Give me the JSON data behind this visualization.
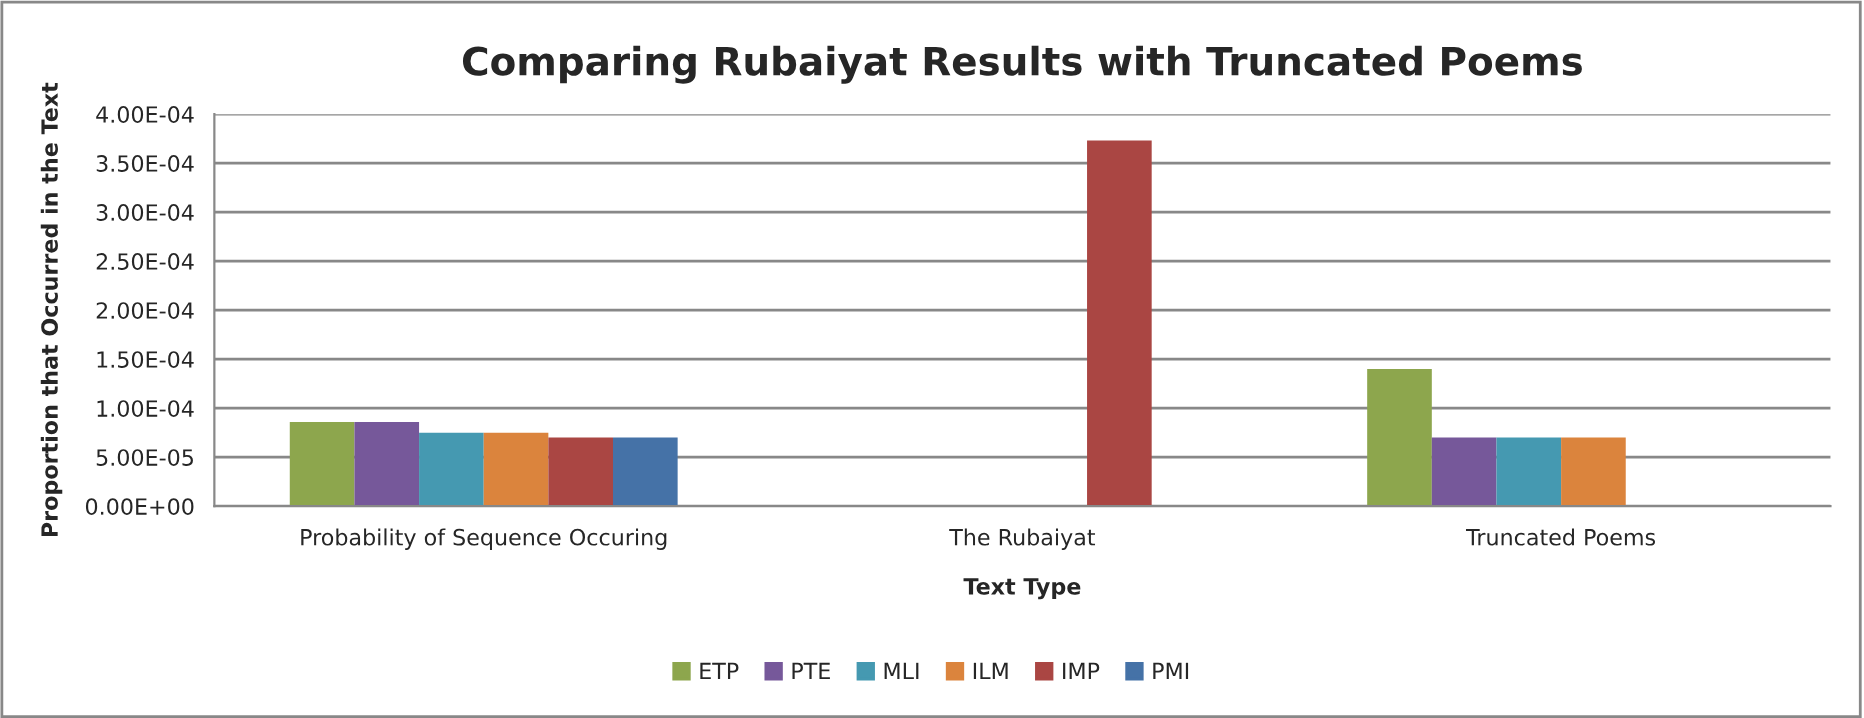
{
  "chart_data": {
    "type": "bar",
    "title": "Comparing Rubaiyat Results with Truncated Poems",
    "xlabel": "Text Type",
    "ylabel": "Proportion that Occurred in the Text",
    "categories": [
      "Probability of Sequence Occuring",
      "The Rubaiyat",
      "Truncated Poems"
    ],
    "series": [
      {
        "name": "ETP",
        "color": "#8da64d",
        "values": [
          8.6e-05,
          null,
          0.00014
        ]
      },
      {
        "name": "PTE",
        "color": "#76589a",
        "values": [
          8.6e-05,
          null,
          7e-05
        ]
      },
      {
        "name": "MLI",
        "color": "#4599b1",
        "values": [
          7.5e-05,
          null,
          7e-05
        ]
      },
      {
        "name": "ILM",
        "color": "#db843d",
        "values": [
          7.5e-05,
          null,
          7e-05
        ]
      },
      {
        "name": "IMP",
        "color": "#aa4643",
        "values": [
          7e-05,
          0.000373,
          null
        ]
      },
      {
        "name": "PMI",
        "color": "#4572a7",
        "values": [
          7e-05,
          null,
          null
        ]
      }
    ],
    "ylim": [
      0,
      0.0004
    ],
    "yticks": [
      {
        "value": 0,
        "label": "0.00E+00"
      },
      {
        "value": 5e-05,
        "label": "5.00E-05"
      },
      {
        "value": 0.0001,
        "label": "1.00E-04"
      },
      {
        "value": 0.00015,
        "label": "1.50E-04"
      },
      {
        "value": 0.0002,
        "label": "2.00E-04"
      },
      {
        "value": 0.00025,
        "label": "2.50E-04"
      },
      {
        "value": 0.0003,
        "label": "3.00E-04"
      },
      {
        "value": 0.00035,
        "label": "3.50E-04"
      },
      {
        "value": 0.0004,
        "label": "4.00E-04"
      }
    ],
    "grid": "y",
    "legend": "bottom"
  }
}
